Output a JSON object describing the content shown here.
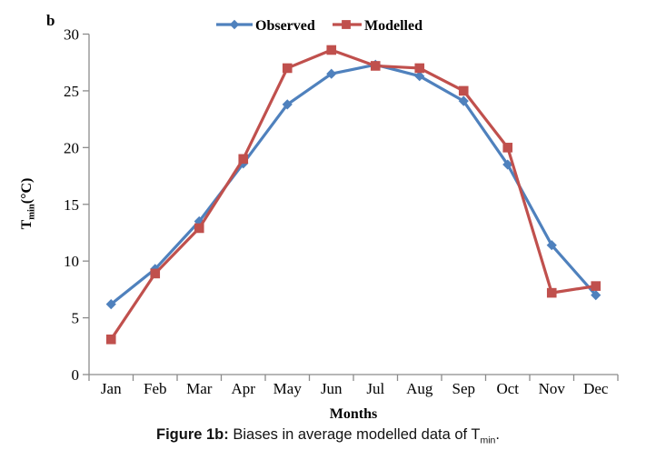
{
  "panel": {
    "label": "b"
  },
  "chart_data": {
    "type": "line",
    "title": "",
    "categories": [
      "Jan",
      "Feb",
      "Mar",
      "Apr",
      "May",
      "Jun",
      "Jul",
      "Aug",
      "Sep",
      "Oct",
      "Nov",
      "Dec"
    ],
    "series": [
      {
        "name": "Observed",
        "color": "#4F81BD",
        "marker": "diamond",
        "values": [
          6.2,
          9.3,
          13.5,
          18.6,
          23.8,
          26.5,
          27.3,
          26.3,
          24.1,
          18.5,
          11.4,
          7.0
        ]
      },
      {
        "name": "Modelled",
        "color": "#C0504D",
        "marker": "square",
        "values": [
          3.1,
          8.9,
          12.9,
          19.0,
          27.0,
          28.6,
          27.2,
          27.0,
          25.0,
          20.0,
          7.2,
          7.8
        ]
      }
    ],
    "xlabel": "Months",
    "ylabel": "Tmin(°C)",
    "ylabel_parts": {
      "main": "T",
      "sub": "min",
      "unit": "(°C)"
    },
    "ylim": [
      0,
      30
    ],
    "yticks": [
      0,
      5,
      10,
      15,
      20,
      25,
      30
    ],
    "legend_position": "top",
    "grid": false,
    "axis_color": "#8C8C8C",
    "text_color": "#000000"
  },
  "caption": {
    "prefix": "Figure 1b:",
    "body": " Biases in average modelled data of T",
    "sub": "min",
    "suffix": "."
  }
}
